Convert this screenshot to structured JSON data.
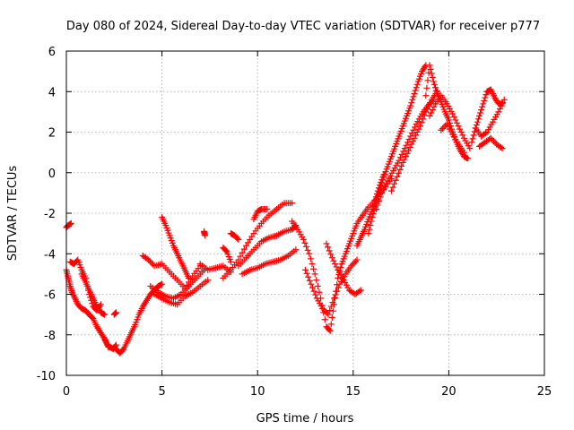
{
  "chart_data": {
    "type": "scatter",
    "title": "Day 080 of 2024, Sidereal Day-to-day VTEC variation (SDTVAR) for receiver p777",
    "xlabel": "GPS time / hours",
    "ylabel": "SDTVAR / TECUs",
    "xlim": [
      0,
      25
    ],
    "ylim": [
      -10,
      6
    ],
    "xticks": [
      0,
      5,
      10,
      15,
      20,
      25
    ],
    "yticks": [
      -10,
      -8,
      -6,
      -4,
      -2,
      0,
      2,
      4,
      6
    ],
    "grid": true,
    "marker": "plus",
    "color": "#ff0000",
    "series": [
      {
        "x": [
          0.0,
          0.1,
          0.25
        ],
        "y": [
          -2.7,
          -2.6,
          -2.5
        ]
      },
      {
        "x": [
          0.0,
          0.1,
          0.2,
          0.3,
          0.45,
          0.6,
          0.8,
          1.0,
          1.2,
          1.4,
          1.6,
          1.8,
          2.0,
          2.1,
          2.2,
          2.3,
          2.45,
          2.6
        ],
        "y": [
          -4.8,
          -5.2,
          -5.6,
          -5.9,
          -6.2,
          -6.5,
          -6.7,
          -6.8,
          -7.0,
          -7.2,
          -7.6,
          -7.9,
          -8.2,
          -8.4,
          -8.6,
          -8.6,
          -8.7,
          -8.5
        ]
      },
      {
        "x": [
          0.2,
          0.4,
          0.6,
          0.8,
          1.0,
          1.2,
          1.4,
          1.6,
          1.8
        ],
        "y": [
          -4.4,
          -4.5,
          -4.3,
          -4.8,
          -5.2,
          -6.0,
          -6.6,
          -6.8,
          -6.5
        ]
      },
      {
        "x": [
          0.8,
          1.0,
          1.2,
          1.4,
          1.6,
          1.8,
          2.0
        ],
        "y": [
          -5.0,
          -5.4,
          -5.8,
          -6.2,
          -6.6,
          -6.9,
          -7.0
        ]
      },
      {
        "x": [
          2.5,
          2.6
        ],
        "y": [
          -7.0,
          -6.9
        ]
      },
      {
        "x": [
          2.6,
          2.8,
          3.0,
          3.2,
          3.4,
          3.6,
          3.8,
          4.0,
          4.2,
          4.4,
          4.6,
          4.8,
          5.0
        ],
        "y": [
          -8.7,
          -8.9,
          -8.7,
          -8.3,
          -7.9,
          -7.5,
          -7.0,
          -6.6,
          -6.3,
          -6.0,
          -5.8,
          -5.6,
          -5.5
        ]
      },
      {
        "x": [
          4.0,
          4.3,
          4.6,
          5.0,
          5.4,
          5.8,
          6.2,
          6.6,
          7.0
        ],
        "y": [
          -4.1,
          -4.3,
          -4.6,
          -4.5,
          -4.9,
          -5.3,
          -5.7,
          -5.1,
          -4.6
        ]
      },
      {
        "x": [
          4.4,
          4.8,
          5.2,
          5.6,
          6.0,
          6.4,
          6.8,
          7.2
        ],
        "y": [
          -5.6,
          -5.9,
          -6.1,
          -6.2,
          -6.0,
          -5.6,
          -5.2,
          -4.8
        ]
      },
      {
        "x": [
          4.6,
          5.0,
          5.4,
          5.8,
          6.2,
          6.6,
          7.0,
          7.4
        ],
        "y": [
          -6.0,
          -6.2,
          -6.4,
          -6.5,
          -6.1,
          -5.9,
          -5.6,
          -5.3
        ]
      },
      {
        "x": [
          5.0,
          5.2,
          5.4,
          5.6,
          5.8,
          6.0,
          6.2,
          6.4
        ],
        "y": [
          -2.2,
          -2.6,
          -3.1,
          -3.6,
          -4.0,
          -4.4,
          -4.8,
          -5.2
        ]
      },
      {
        "x": [
          7.2,
          7.25
        ],
        "y": [
          -2.9,
          -3.1
        ]
      },
      {
        "x": [
          7.0,
          7.4,
          7.8,
          8.2,
          8.6
        ],
        "y": [
          -4.5,
          -4.8,
          -4.7,
          -4.6,
          -4.9
        ]
      },
      {
        "x": [
          8.2,
          8.4,
          8.6
        ],
        "y": [
          -3.7,
          -3.9,
          -4.4
        ]
      },
      {
        "x": [
          8.6,
          8.8,
          9.0
        ],
        "y": [
          -3.0,
          -3.1,
          -3.3
        ]
      },
      {
        "x": [
          8.2,
          8.6,
          9.0,
          9.4,
          9.8,
          10.2,
          10.6,
          11.0,
          11.4,
          11.8
        ],
        "y": [
          -5.2,
          -4.8,
          -4.3,
          -3.6,
          -3.0,
          -2.5,
          -2.1,
          -1.8,
          -1.5,
          -1.5
        ]
      },
      {
        "x": [
          9.0,
          9.4,
          9.8,
          10.2,
          10.6,
          11.0,
          11.4,
          11.8,
          12.0
        ],
        "y": [
          -4.6,
          -4.2,
          -3.8,
          -3.4,
          -3.2,
          -3.1,
          -2.9,
          -2.8,
          -2.6
        ]
      },
      {
        "x": [
          9.2,
          9.6,
          10.0,
          10.4,
          10.8,
          11.2,
          11.6,
          12.0
        ],
        "y": [
          -5.0,
          -4.8,
          -4.7,
          -4.5,
          -4.4,
          -4.3,
          -4.1,
          -3.8
        ]
      },
      {
        "x": [
          9.8,
          10.0,
          10.2,
          10.5
        ],
        "y": [
          -2.3,
          -1.9,
          -1.8,
          -1.8
        ]
      },
      {
        "x": [
          11.8,
          12.1,
          12.4,
          12.7,
          13.0,
          13.3,
          13.6,
          13.8,
          14.0,
          14.2,
          14.4,
          14.6,
          14.8,
          15.0,
          15.2,
          15.5,
          15.8,
          16.2,
          16.6,
          17.0
        ],
        "y": [
          -2.4,
          -2.8,
          -3.3,
          -4.0,
          -5.0,
          -6.2,
          -7.6,
          -7.8,
          -6.5,
          -5.2,
          -4.5,
          -4.0,
          -3.5,
          -3.0,
          -2.5,
          -2.1,
          -1.7,
          -1.3,
          -0.8,
          -0.3
        ]
      },
      {
        "x": [
          12.5,
          12.8,
          13.1,
          13.4,
          13.7,
          14.0,
          14.3,
          14.6,
          14.9,
          15.2
        ],
        "y": [
          -4.8,
          -5.5,
          -6.2,
          -6.7,
          -7.0,
          -6.2,
          -5.5,
          -5.0,
          -4.6,
          -4.3
        ]
      },
      {
        "x": [
          13.6,
          13.9,
          14.2,
          14.5,
          14.8,
          15.1,
          15.4
        ],
        "y": [
          -3.5,
          -4.2,
          -4.8,
          -5.3,
          -5.8,
          -6.0,
          -5.8
        ]
      },
      {
        "x": [
          15.2,
          15.4,
          15.6,
          15.8,
          16.0,
          16.2,
          16.4,
          16.6
        ],
        "y": [
          -3.6,
          -3.2,
          -2.8,
          -2.3,
          -1.8,
          -1.2,
          -0.6,
          -0.1
        ]
      },
      {
        "x": [
          15.8,
          16.0,
          16.2,
          16.4,
          16.6,
          16.8,
          17.0,
          17.2,
          17.4,
          17.6,
          17.8,
          18.0,
          18.2,
          18.4,
          18.6,
          18.8
        ],
        "y": [
          -3.0,
          -2.2,
          -1.5,
          -0.8,
          -0.2,
          0.3,
          0.8,
          1.3,
          1.8,
          2.3,
          2.8,
          3.3,
          3.9,
          4.5,
          5.0,
          5.3
        ]
      },
      {
        "x": [
          16.2,
          16.5,
          16.8,
          17.1,
          17.4,
          17.7,
          18.0,
          18.3,
          18.6,
          18.9,
          19.2
        ],
        "y": [
          -1.8,
          -1.0,
          -0.4,
          0.1,
          0.6,
          1.2,
          1.8,
          2.4,
          2.9,
          3.3,
          3.6
        ]
      },
      {
        "x": [
          17.0,
          17.3,
          17.6,
          17.9,
          18.2,
          18.5,
          18.8,
          19.1,
          19.4
        ],
        "y": [
          -0.9,
          -0.2,
          0.5,
          1.1,
          1.7,
          2.3,
          3.0,
          3.6,
          4.0
        ]
      },
      {
        "x": [
          18.8,
          19.0,
          19.2,
          19.4,
          19.6,
          19.8,
          20.0,
          20.2,
          20.4,
          20.6,
          20.8,
          21.0
        ],
        "y": [
          3.8,
          5.3,
          4.5,
          3.9,
          3.5,
          3.0,
          2.6,
          2.0,
          1.5,
          1.1,
          0.8,
          0.7
        ]
      },
      {
        "x": [
          19.0,
          19.3,
          19.6,
          19.9,
          20.2,
          20.5,
          20.8,
          21.1
        ],
        "y": [
          2.8,
          3.4,
          3.8,
          3.4,
          2.9,
          2.3,
          1.7,
          1.2
        ]
      },
      {
        "x": [
          19.6,
          19.9,
          20.2,
          20.5,
          20.8
        ],
        "y": [
          2.1,
          2.4,
          1.9,
          1.4,
          1.0
        ]
      },
      {
        "x": [
          21.2,
          21.4,
          21.6,
          21.8,
          22.0,
          22.2,
          22.4,
          22.6,
          22.8
        ],
        "y": [
          1.5,
          2.2,
          2.8,
          3.4,
          4.0,
          4.1,
          3.7,
          3.4,
          3.4
        ]
      },
      {
        "x": [
          21.4,
          21.7,
          22.0,
          22.3,
          22.6,
          22.9
        ],
        "y": [
          2.2,
          1.8,
          2.0,
          2.5,
          3.0,
          3.6
        ]
      },
      {
        "x": [
          21.6,
          21.9,
          22.2,
          22.5,
          22.8
        ],
        "y": [
          1.3,
          1.5,
          1.7,
          1.4,
          1.2
        ]
      }
    ]
  }
}
